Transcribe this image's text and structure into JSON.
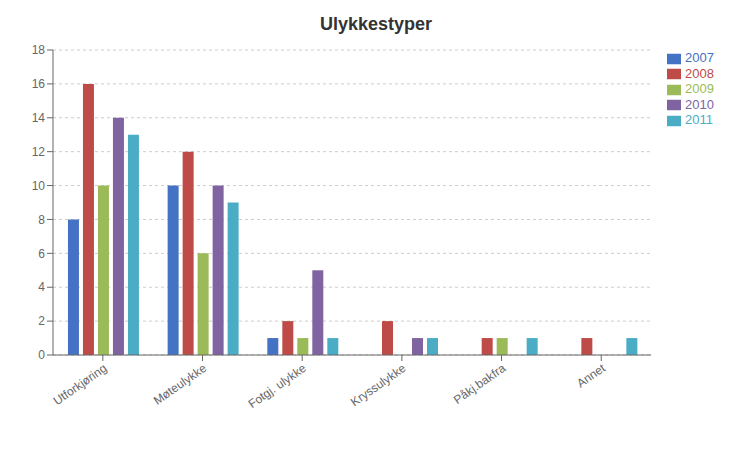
{
  "chart_data": {
    "type": "bar",
    "title": "Ulykkestyper",
    "categories": [
      "Utforkjøring",
      "Møteulykke",
      "Fotgj. ulykke",
      "Kryssulykke",
      "Påkj.bakfra",
      "Annet"
    ],
    "series": [
      {
        "name": "2007",
        "color": "#4472C4",
        "values": [
          8,
          10,
          1,
          0,
          0,
          0
        ]
      },
      {
        "name": "2008",
        "color": "#BE4B48",
        "values": [
          16,
          12,
          2,
          2,
          1,
          1
        ]
      },
      {
        "name": "2009",
        "color": "#9BBB59",
        "values": [
          10,
          6,
          1,
          0,
          1,
          0
        ]
      },
      {
        "name": "2010",
        "color": "#8064A2",
        "values": [
          14,
          10,
          5,
          1,
          0,
          0
        ]
      },
      {
        "name": "2011",
        "color": "#4BACC6",
        "values": [
          13,
          9,
          1,
          1,
          1,
          1
        ]
      }
    ],
    "ylim": [
      0,
      18
    ],
    "yticks": [
      0,
      2,
      4,
      6,
      8,
      10,
      12,
      14,
      16,
      18
    ],
    "grid": true,
    "legend": "right"
  }
}
